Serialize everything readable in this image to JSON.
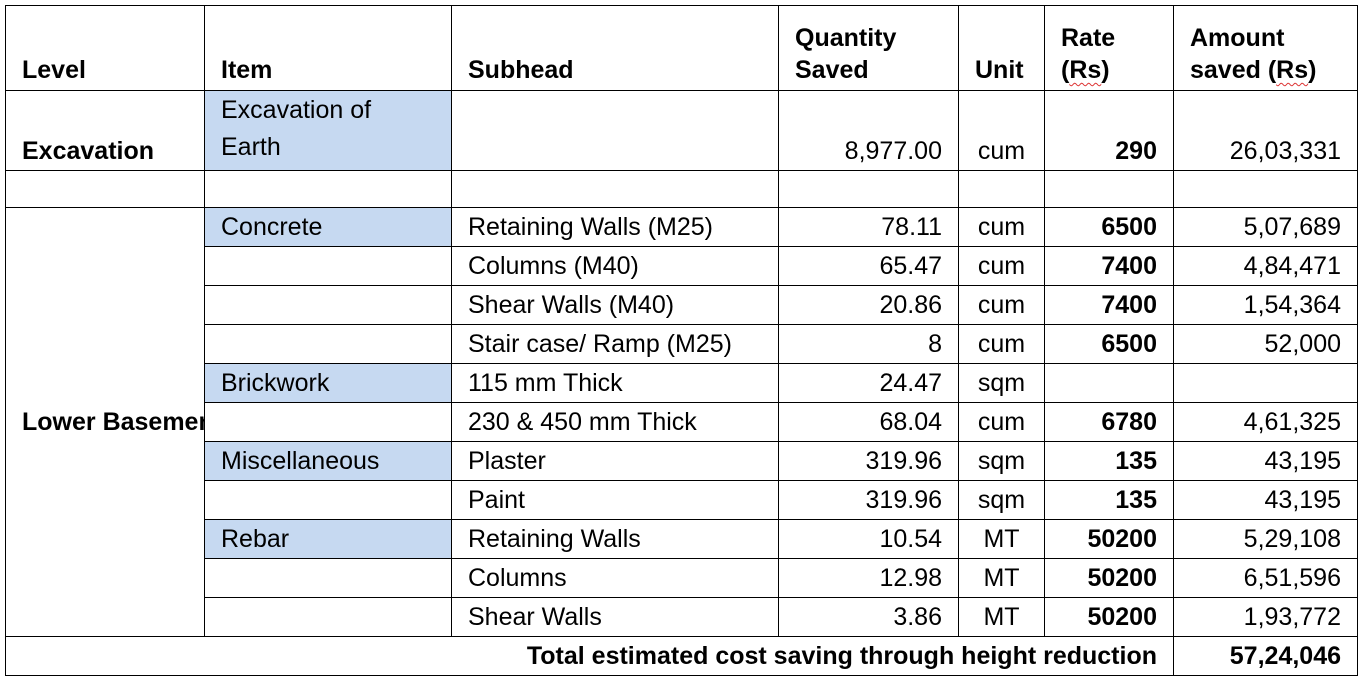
{
  "header": {
    "level": "Level",
    "item": "Item",
    "subhead": "Subhead",
    "quantity": "Quantity Saved",
    "unit": "Unit",
    "rate_word": "Rate",
    "rate_rs": "Rs",
    "amount_word": "Amount saved",
    "amount_rs": "Rs"
  },
  "excavation": {
    "level": "Excavation",
    "item": "Excavation of Earth",
    "subhead": "",
    "quantity": "8,977.00",
    "unit": "cum",
    "rate": "290",
    "amount": "26,03,331"
  },
  "basement_level": "Lower Basement/ Upper Basement",
  "rows": [
    {
      "item": "Concrete",
      "subhead": "Retaining Walls (M25)",
      "quantity": "78.11",
      "unit": "cum",
      "rate": "6500",
      "amount": "5,07,689"
    },
    {
      "item": "",
      "subhead": "Columns (M40)",
      "quantity": "65.47",
      "unit": "cum",
      "rate": "7400",
      "amount": "4,84,471"
    },
    {
      "item": "",
      "subhead": "Shear Walls (M40)",
      "quantity": "20.86",
      "unit": "cum",
      "rate": "7400",
      "amount": "1,54,364"
    },
    {
      "item": "",
      "subhead": "Stair case/ Ramp (M25)",
      "quantity": "8",
      "unit": "cum",
      "rate": "6500",
      "amount": "52,000"
    },
    {
      "item": "Brickwork",
      "subhead": "115 mm Thick",
      "quantity": "24.47",
      "unit": "sqm",
      "rate": "",
      "amount": ""
    },
    {
      "item": "",
      "subhead": "230 & 450 mm Thick",
      "quantity": "68.04",
      "unit": "cum",
      "rate": "6780",
      "amount": "4,61,325"
    },
    {
      "item": "Miscellaneous",
      "subhead": "Plaster",
      "quantity": "319.96",
      "unit": "sqm",
      "rate": "135",
      "amount": "43,195"
    },
    {
      "item": "",
      "subhead": "Paint",
      "quantity": "319.96",
      "unit": "sqm",
      "rate": "135",
      "amount": "43,195"
    },
    {
      "item": "Rebar",
      "subhead": "Retaining Walls",
      "quantity": "10.54",
      "unit": "MT",
      "rate": "50200",
      "amount": "5,29,108"
    },
    {
      "item": "",
      "subhead": "Columns",
      "quantity": "12.98",
      "unit": "MT",
      "rate": "50200",
      "amount": "6,51,596"
    },
    {
      "item": "",
      "subhead": "Shear Walls",
      "quantity": "3.86",
      "unit": "MT",
      "rate": "50200",
      "amount": "1,93,772"
    }
  ],
  "total": {
    "label": "Total estimated cost saving through height reduction",
    "amount": "57,24,046"
  },
  "colors": {
    "item_highlight": "#c6d9f1",
    "grid": "#000000"
  }
}
